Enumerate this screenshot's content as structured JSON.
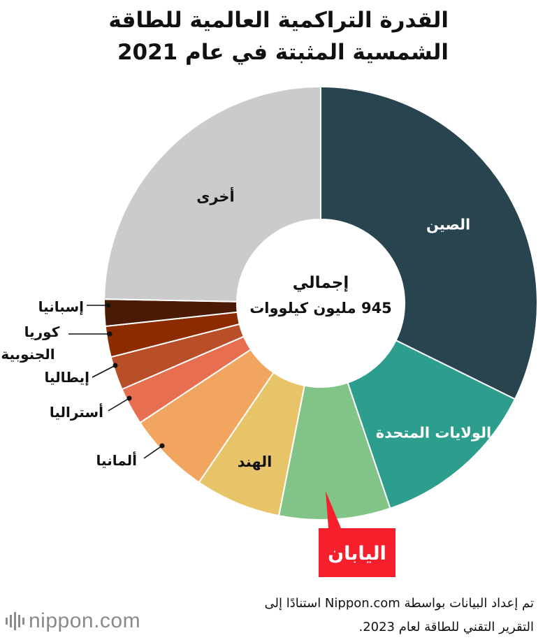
{
  "title": {
    "line1": "القدرة التراكمية العالمية للطاقة",
    "line2": "الشمسية المثبتة في عام 2021"
  },
  "center": {
    "line1": "إجمالي",
    "line2": "945 مليون كيلووات"
  },
  "chart_data": {
    "type": "donut",
    "total": 945,
    "unit": "مليون كيلووات",
    "slices": [
      {
        "label": "الصين",
        "value": 32.3,
        "color": "#27444f"
      },
      {
        "label": "الولايات المتحدة",
        "value": 12.5,
        "color": "#2d9d8d"
      },
      {
        "label": "اليابان",
        "value": 8.3,
        "color": "#82c487"
      },
      {
        "label": "الهند",
        "value": 6.4,
        "color": "#e8c468"
      },
      {
        "label": "ألمانيا",
        "value": 6.2,
        "color": "#f2a55e"
      },
      {
        "label": "أستراليا",
        "value": 2.8,
        "color": "#e76f4f"
      },
      {
        "label": "إيطاليا",
        "value": 2.5,
        "color": "#b94f28"
      },
      {
        "label": "كوريا الجنوبية",
        "value": 2.3,
        "color": "#8c2a00"
      },
      {
        "label": "إسبانيا",
        "value": 2.0,
        "color": "#4a1a05"
      },
      {
        "label": "أخرى",
        "value": 24.7,
        "color": "#cbcbcb"
      }
    ],
    "highlight": {
      "label": "اليابان",
      "color": "#f5202b"
    }
  },
  "footer": {
    "note_line1": "تم إعداد البيانات بواسطة Nippon.com استنادًا إلى",
    "note_line2": "التقرير التقني للطاقة لعام 2023."
  },
  "brand": {
    "name": "nippon.com"
  }
}
